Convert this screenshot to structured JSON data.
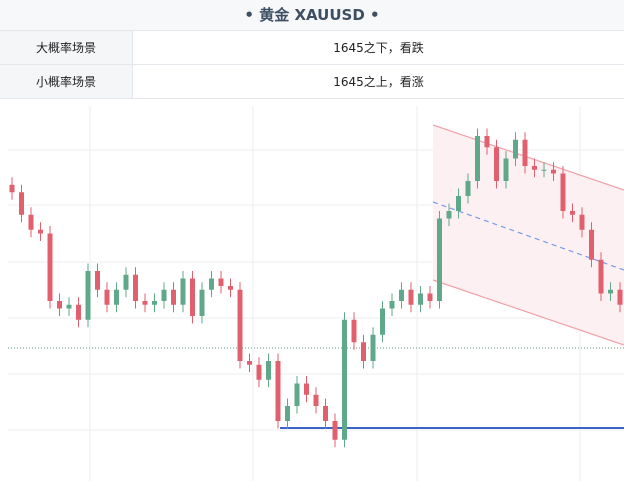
{
  "header": {
    "title": "• 黄金  XAUUSD •"
  },
  "table": {
    "rows": [
      [
        "大概率场景",
        "1645之下，看跌"
      ],
      [
        "小概率场景",
        "1645之上，看涨"
      ]
    ]
  },
  "chart_data": {
    "type": "candlestick",
    "ylim": [
      0,
      100
    ],
    "up_color": "#5fa88a",
    "down_color": "#e0606e",
    "open": [
      79,
      77,
      71,
      67,
      66,
      48,
      46,
      47,
      43,
      56,
      51,
      47,
      51,
      55,
      48,
      47,
      48,
      51,
      47,
      54,
      44,
      51,
      54,
      52,
      51,
      32,
      31,
      27,
      32,
      16,
      20,
      26,
      23,
      20,
      16,
      11,
      43,
      37,
      32,
      39,
      46,
      48,
      51,
      47,
      50,
      48,
      70,
      72,
      76,
      80,
      92,
      89,
      80,
      86,
      91,
      84,
      83,
      83,
      82,
      72,
      71,
      67,
      59,
      50,
      51
    ],
    "high": [
      81,
      79,
      73,
      69,
      68,
      50,
      49,
      49,
      58,
      58,
      53,
      53,
      57,
      57,
      50,
      50,
      53,
      53,
      56,
      56,
      53,
      56,
      56,
      54,
      53,
      34,
      33,
      34,
      34,
      22,
      28,
      28,
      25,
      22,
      18,
      45,
      45,
      39,
      41,
      48,
      50,
      53,
      53,
      52,
      52,
      72,
      74,
      78,
      82,
      94,
      94,
      91,
      88,
      93,
      93,
      86,
      85,
      85,
      84,
      74,
      73,
      69,
      61,
      53,
      53
    ],
    "low": [
      75,
      69,
      65,
      64,
      46,
      44,
      44,
      41,
      41,
      49,
      45,
      45,
      49,
      46,
      45,
      45,
      46,
      45,
      45,
      42,
      42,
      49,
      50,
      49,
      30,
      29,
      25,
      25,
      14,
      14,
      18,
      21,
      18,
      14,
      9,
      9,
      35,
      30,
      30,
      37,
      44,
      46,
      45,
      45,
      46,
      46,
      68,
      70,
      74,
      78,
      87,
      78,
      78,
      84,
      82,
      81,
      81,
      80,
      70,
      69,
      65,
      57,
      48,
      48,
      45
    ],
    "close": [
      77,
      71,
      67,
      66,
      48,
      46,
      47,
      43,
      56,
      51,
      47,
      51,
      55,
      48,
      47,
      48,
      51,
      47,
      54,
      44,
      51,
      54,
      52,
      51,
      32,
      31,
      27,
      32,
      16,
      20,
      26,
      23,
      20,
      16,
      11,
      43,
      37,
      32,
      39,
      46,
      48,
      51,
      47,
      50,
      48,
      70,
      72,
      76,
      80,
      92,
      89,
      80,
      86,
      91,
      84,
      83,
      83,
      82,
      72,
      71,
      67,
      59,
      50,
      51,
      47
    ]
  }
}
